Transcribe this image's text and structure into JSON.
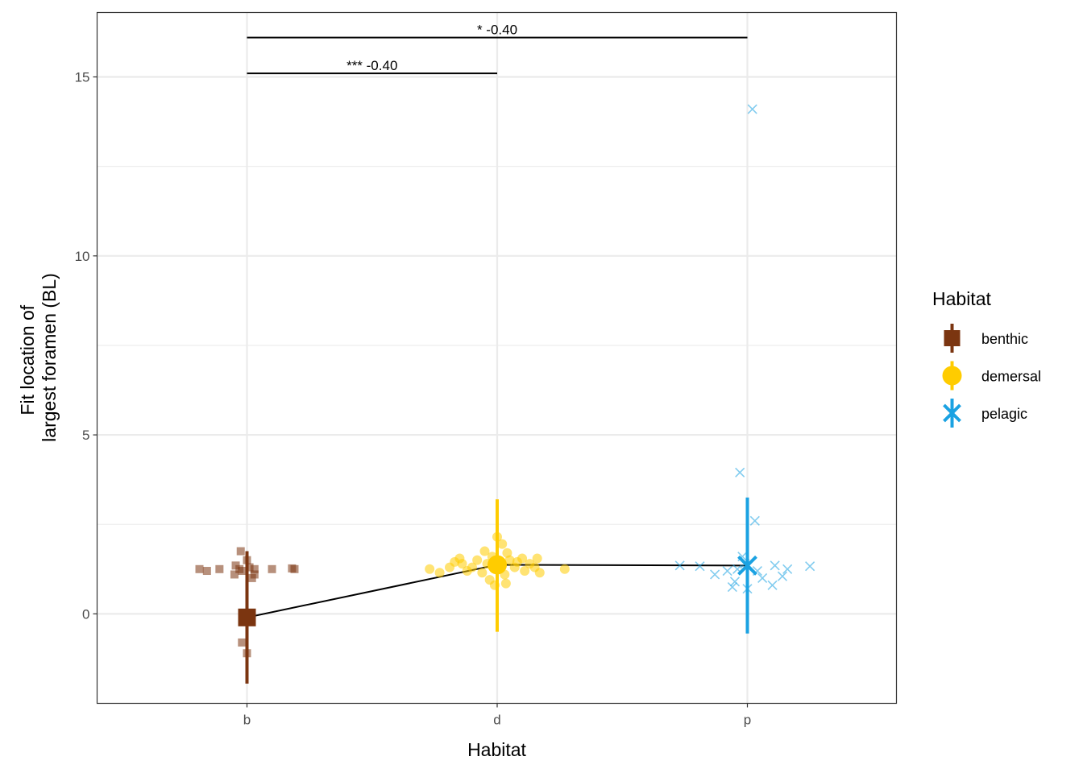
{
  "chart_data": {
    "type": "scatter",
    "xlabel": "Habitat",
    "ylabel_lines": [
      "Fit location of",
      "largest foramen (BL)"
    ],
    "categories": [
      "b",
      "d",
      "p"
    ],
    "ylim": [
      -2.5,
      16.8
    ],
    "y_ticks": [
      0,
      5,
      10,
      15
    ],
    "grid": true,
    "legend": {
      "title": "Habitat",
      "position": "right",
      "entries": [
        {
          "label": "benthic",
          "color": "#7B3510",
          "shape": "square"
        },
        {
          "label": "demersal",
          "color": "#FFCC00",
          "shape": "circle"
        },
        {
          "label": "pelagic",
          "color": "#1BA2E2",
          "shape": "cross"
        }
      ]
    },
    "summary": [
      {
        "category": "b",
        "mean": -0.1,
        "lower": -1.95,
        "upper": 1.75
      },
      {
        "category": "d",
        "mean": 1.37,
        "lower": -0.5,
        "upper": 3.2
      },
      {
        "category": "p",
        "mean": 1.35,
        "lower": -0.55,
        "upper": 3.25
      }
    ],
    "mean_line": [
      {
        "category": "b",
        "y": -0.1
      },
      {
        "category": "d",
        "y": 1.37
      },
      {
        "category": "p",
        "y": 1.35
      }
    ],
    "significance": [
      {
        "from": "b",
        "to": "d",
        "y": 15.1,
        "label": "*** -0.40"
      },
      {
        "from": "b",
        "to": "p",
        "y": 16.1,
        "label": "* -0.40"
      }
    ],
    "points": {
      "b": [
        {
          "dx": -0.19,
          "y": 1.25
        },
        {
          "dx": -0.16,
          "y": 1.2
        },
        {
          "dx": -0.11,
          "y": 1.25
        },
        {
          "dx": -0.05,
          "y": 1.1
        },
        {
          "dx": -0.045,
          "y": 1.35
        },
        {
          "dx": -0.03,
          "y": 1.25
        },
        {
          "dx": -0.025,
          "y": 1.75
        },
        {
          "dx": -0.02,
          "y": 1.2
        },
        {
          "dx": 0.0,
          "y": 1.5
        },
        {
          "dx": 0.01,
          "y": 1.3
        },
        {
          "dx": 0.02,
          "y": 1.0
        },
        {
          "dx": 0.03,
          "y": 1.25
        },
        {
          "dx": 0.03,
          "y": 1.1
        },
        {
          "dx": 0.1,
          "y": 1.25
        },
        {
          "dx": 0.18,
          "y": 1.27
        },
        {
          "dx": 0.19,
          "y": 1.25
        },
        {
          "dx": -0.02,
          "y": -0.8
        },
        {
          "dx": 0.0,
          "y": -1.1
        }
      ],
      "d": [
        {
          "dx": -0.27,
          "y": 1.25
        },
        {
          "dx": -0.23,
          "y": 1.15
        },
        {
          "dx": -0.19,
          "y": 1.3
        },
        {
          "dx": -0.17,
          "y": 1.45
        },
        {
          "dx": -0.15,
          "y": 1.55
        },
        {
          "dx": -0.14,
          "y": 1.4
        },
        {
          "dx": -0.12,
          "y": 1.2
        },
        {
          "dx": -0.1,
          "y": 1.3
        },
        {
          "dx": -0.08,
          "y": 1.5
        },
        {
          "dx": -0.06,
          "y": 1.15
        },
        {
          "dx": -0.05,
          "y": 1.75
        },
        {
          "dx": -0.04,
          "y": 1.4
        },
        {
          "dx": -0.03,
          "y": 0.95
        },
        {
          "dx": -0.02,
          "y": 1.6
        },
        {
          "dx": -0.01,
          "y": 0.8
        },
        {
          "dx": 0.0,
          "y": 2.15
        },
        {
          "dx": 0.01,
          "y": 1.3
        },
        {
          "dx": 0.02,
          "y": 1.95
        },
        {
          "dx": 0.03,
          "y": 1.1
        },
        {
          "dx": 0.035,
          "y": 0.85
        },
        {
          "dx": 0.04,
          "y": 1.7
        },
        {
          "dx": 0.05,
          "y": 1.5
        },
        {
          "dx": 0.07,
          "y": 1.3
        },
        {
          "dx": 0.08,
          "y": 1.45
        },
        {
          "dx": 0.1,
          "y": 1.55
        },
        {
          "dx": 0.11,
          "y": 1.2
        },
        {
          "dx": 0.13,
          "y": 1.4
        },
        {
          "dx": 0.15,
          "y": 1.3
        },
        {
          "dx": 0.16,
          "y": 1.55
        },
        {
          "dx": 0.17,
          "y": 1.15
        },
        {
          "dx": 0.27,
          "y": 1.25
        }
      ],
      "p": [
        {
          "dx": -0.27,
          "y": 1.35
        },
        {
          "dx": -0.19,
          "y": 1.33
        },
        {
          "dx": -0.13,
          "y": 1.1
        },
        {
          "dx": -0.08,
          "y": 1.2
        },
        {
          "dx": -0.06,
          "y": 0.75
        },
        {
          "dx": -0.05,
          "y": 0.9
        },
        {
          "dx": -0.04,
          "y": 1.25
        },
        {
          "dx": -0.03,
          "y": 3.95
        },
        {
          "dx": -0.02,
          "y": 1.6
        },
        {
          "dx": -0.01,
          "y": 1.4
        },
        {
          "dx": 0.0,
          "y": 0.7
        },
        {
          "dx": 0.02,
          "y": 14.1
        },
        {
          "dx": 0.03,
          "y": 2.6
        },
        {
          "dx": 0.04,
          "y": 1.2
        },
        {
          "dx": 0.06,
          "y": 1.0
        },
        {
          "dx": 0.1,
          "y": 0.8
        },
        {
          "dx": 0.11,
          "y": 1.35
        },
        {
          "dx": 0.14,
          "y": 1.05
        },
        {
          "dx": 0.16,
          "y": 1.25
        },
        {
          "dx": 0.25,
          "y": 1.33
        }
      ]
    }
  }
}
